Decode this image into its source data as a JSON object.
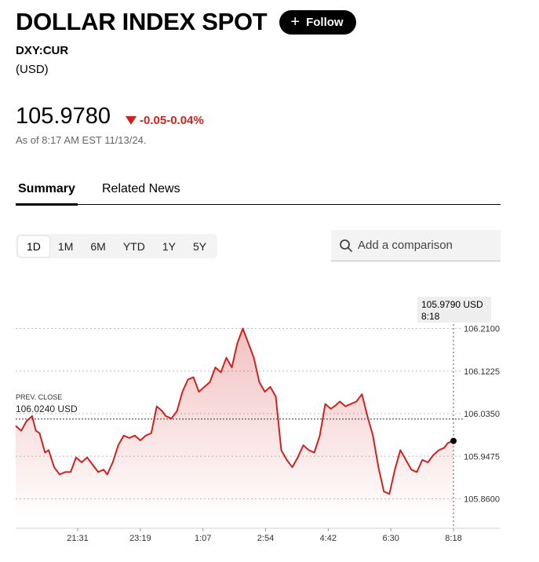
{
  "header": {
    "title": "DOLLAR INDEX SPOT",
    "follow_label": "Follow",
    "ticker": "DXY:CUR",
    "currency": "(USD)"
  },
  "quote": {
    "price": "105.9780",
    "change": "-0.05",
    "change_pct": "-0.04%",
    "as_of": "As of 8:17 AM EST 11/13/24.",
    "change_color": "#d1211f"
  },
  "tabs": [
    {
      "label": "Summary",
      "active": true
    },
    {
      "label": "Related News",
      "active": false
    }
  ],
  "ranges": [
    "1D",
    "1M",
    "6M",
    "YTD",
    "1Y",
    "5Y"
  ],
  "active_range": "1D",
  "compare": {
    "placeholder": "Add a comparison"
  },
  "chart_data": {
    "type": "area",
    "line_color": "#d1211f",
    "grid": true,
    "ylim": [
      105.835,
      106.235
    ],
    "y_ticks": [
      "106.2100",
      "106.1225",
      "106.0350",
      "105.9475",
      "105.8600"
    ],
    "x_ticks": [
      "21:31",
      "23:19",
      "1:07",
      "2:54",
      "4:42",
      "6:30",
      "8:18"
    ],
    "prev_close": {
      "label": "PREV. CLOSE",
      "value": 106.024,
      "value_label": "106.0240 USD"
    },
    "last": {
      "value_label": "105.9790 USD",
      "time_label": "8:18",
      "value": 105.979
    },
    "series": [
      {
        "x": [
          0,
          0.3,
          0.6,
          0.9,
          1.1,
          1.3,
          1.6,
          1.8,
          2.1,
          2.4,
          2.7,
          3.0,
          3.3,
          3.6,
          3.9,
          4.2,
          4.5,
          4.8,
          5.0,
          5.3,
          5.6,
          5.9,
          6.2,
          6.5,
          6.8,
          7.1,
          7.4,
          7.7,
          8.0,
          8.2,
          8.5,
          8.8,
          9.1,
          9.4,
          9.7,
          10.0,
          10.3,
          10.6,
          10.9,
          11.2,
          11.5,
          11.8,
          12.1,
          12.4,
          12.7,
          13.0,
          13.3,
          13.6,
          13.9,
          14.2,
          14.5,
          14.8,
          15.1,
          15.4,
          15.7,
          16.0,
          16.3,
          16.6,
          16.9,
          17.2,
          17.4,
          17.7,
          18.0,
          18.3,
          18.6,
          18.9,
          19.2,
          19.5,
          19.8,
          20.1,
          20.4,
          20.7,
          21.0,
          21.3,
          21.6,
          21.9,
          22.2,
          22.5,
          22.8,
          23.1,
          23.4,
          23.6,
          23.9
        ],
        "values": [
          106.01,
          106.0,
          106.02,
          106.03,
          106.0,
          105.995,
          105.955,
          105.96,
          105.925,
          105.91,
          105.915,
          105.915,
          105.945,
          105.935,
          105.945,
          105.93,
          105.915,
          105.92,
          105.91,
          105.935,
          105.97,
          105.99,
          105.985,
          105.99,
          105.98,
          105.99,
          105.995,
          106.05,
          106.04,
          106.03,
          106.025,
          106.04,
          106.08,
          106.105,
          106.11,
          106.08,
          106.09,
          106.1,
          106.13,
          106.12,
          106.15,
          106.13,
          106.18,
          106.21,
          106.18,
          106.15,
          106.1,
          106.08,
          106.09,
          106.07,
          105.96,
          105.94,
          105.925,
          105.945,
          105.97,
          105.96,
          105.955,
          105.99,
          106.055,
          106.045,
          106.05,
          106.06,
          106.05,
          106.055,
          106.06,
          106.075,
          106.03,
          105.99,
          105.925,
          105.875,
          105.87,
          105.92,
          105.96,
          105.94,
          105.92,
          105.915,
          105.94,
          105.935,
          105.95,
          105.96,
          105.965,
          105.975,
          105.979
        ]
      }
    ]
  }
}
